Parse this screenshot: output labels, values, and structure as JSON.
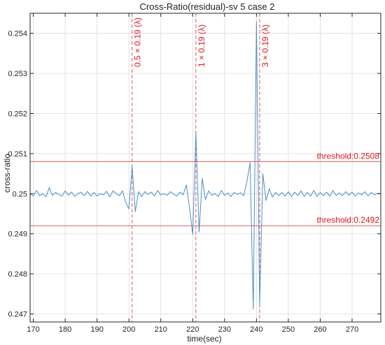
{
  "chart_data": {
    "type": "line",
    "title": "Cross-Ratio(residual)-sv 5 case 2",
    "xlabel": "time(sec)",
    "ylabel": "cross-ratio",
    "xlim": [
      169,
      279
    ],
    "ylim": [
      0.2468,
      0.2545
    ],
    "xticks": [
      170,
      180,
      190,
      200,
      210,
      220,
      230,
      240,
      250,
      260,
      270
    ],
    "xtick_labels": [
      "170",
      "180",
      "190",
      "200",
      "210",
      "220",
      "230",
      "240",
      "250",
      "260",
      "270"
    ],
    "yticks": [
      0.247,
      0.248,
      0.249,
      0.25,
      0.251,
      0.252,
      0.253,
      0.254
    ],
    "ytick_labels": [
      "0.247",
      "0.248",
      "0.249",
      "0.25",
      "0.251",
      "0.252",
      "0.253",
      "0.254"
    ],
    "grid": true,
    "series": [
      {
        "color": "#4a90c8",
        "x": [
          169,
          170,
          171,
          172,
          173,
          174,
          175,
          176,
          177,
          178,
          179,
          180,
          181,
          182,
          183,
          184,
          185,
          186,
          187,
          188,
          189,
          190,
          191,
          192,
          193,
          194,
          195,
          196,
          197,
          198,
          199,
          200,
          201,
          202,
          203,
          204,
          205,
          206,
          207,
          208,
          209,
          210,
          211,
          212,
          213,
          214,
          215,
          216,
          217,
          218,
          219,
          220,
          221,
          222,
          223,
          224,
          225,
          226,
          227,
          228,
          229,
          230,
          231,
          232,
          233,
          234,
          235,
          236,
          237,
          238,
          239,
          240,
          241,
          242,
          243,
          244,
          245,
          246,
          247,
          248,
          249,
          250,
          251,
          252,
          253,
          254,
          255,
          256,
          257,
          258,
          259,
          260,
          261,
          262,
          263,
          264,
          265,
          266,
          267,
          268,
          269,
          270,
          271,
          272,
          273,
          274,
          275,
          276,
          277,
          278,
          279
        ],
        "y": [
          0.25,
          0.24994,
          0.25008,
          0.24995,
          0.25,
          0.24992,
          0.25015,
          0.24996,
          0.25003,
          0.24998,
          0.24994,
          0.25007,
          0.24996,
          0.25004,
          0.24993,
          0.25,
          0.25004,
          0.24995,
          0.25006,
          0.24994,
          0.25003,
          0.24994,
          0.25,
          0.24997,
          0.25006,
          0.24992,
          0.25007,
          0.25,
          0.24995,
          0.25007,
          0.24978,
          0.24962,
          0.25068,
          0.24955,
          0.25005,
          0.24993,
          0.25005,
          0.24998,
          0.25004,
          0.24994,
          0.25008,
          0.24997,
          0.25,
          0.24996,
          0.25005,
          0.24999,
          0.24994,
          0.25004,
          0.24997,
          0.25022,
          0.24966,
          0.24898,
          0.25151,
          0.24904,
          0.25038,
          0.24985,
          0.25007,
          0.24996,
          0.25,
          0.24993,
          0.25008,
          0.24996,
          0.25002,
          0.24993,
          0.25003,
          0.24998,
          0.25002,
          0.24995,
          0.2503,
          0.25078,
          0.24712,
          0.2543,
          0.24722,
          0.2505,
          0.24983,
          0.25012,
          0.24992,
          0.25003,
          0.24995,
          0.25003,
          0.24994,
          0.25005,
          0.24993,
          0.25004,
          0.24995,
          0.25007,
          0.24993,
          0.25003,
          0.24994,
          0.25008,
          0.24993,
          0.25003,
          0.24995,
          0.25004,
          0.24994,
          0.25008,
          0.24995,
          0.25002,
          0.24995,
          0.25005,
          0.24996,
          0.25004,
          0.24994,
          0.25002,
          0.24997,
          0.25005,
          0.24994,
          0.25003,
          0.24997,
          0.25001,
          0.25
        ]
      }
    ],
    "thresholds": [
      {
        "value": 0.2508,
        "label": "threshold:0.2508",
        "color": "#e3585b"
      },
      {
        "value": 0.2492,
        "label": "threshold:0.2492",
        "color": "#e3585b"
      }
    ],
    "events": [
      {
        "x": 201,
        "label": "0.5 × 0.19 (λ)",
        "color": "#e3585b"
      },
      {
        "x": 221,
        "label": "1 × 0.19 (λ)",
        "color": "#e3585b"
      },
      {
        "x": 241,
        "label": "3 × 0.19 (λ)",
        "color": "#e3585b"
      }
    ]
  }
}
